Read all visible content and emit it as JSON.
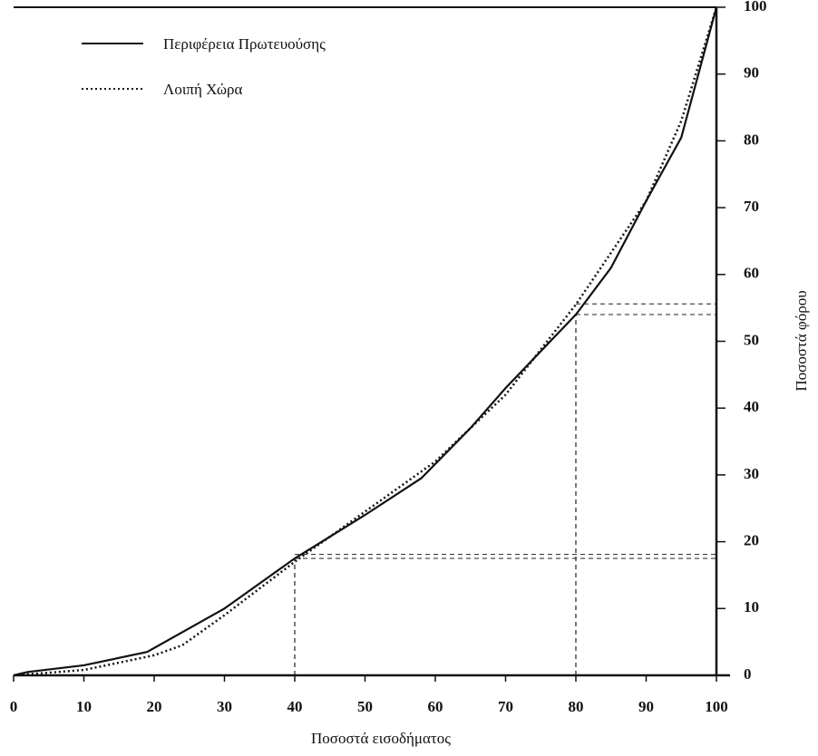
{
  "chart_data": {
    "type": "line",
    "x_label": "Ποσοστά εισοδήματος",
    "y_label": "Ποσοστά φόρου",
    "xlim": [
      0,
      100
    ],
    "xticks": [
      0,
      10,
      20,
      30,
      40,
      50,
      60,
      70,
      80,
      90,
      100
    ],
    "ylim": [
      0,
      100
    ],
    "yticks": [
      0,
      10,
      20,
      30,
      40,
      50,
      60,
      70,
      80,
      90,
      100
    ],
    "legend": "upper left",
    "series": [
      {
        "name": "Περιφέρεια Πρωτευούσης",
        "color": "#111111",
        "style": "solid",
        "x": [
          0,
          2,
          10,
          19,
          30,
          40,
          50,
          58,
          65,
          70,
          80,
          85,
          90,
          95,
          100
        ],
        "values": [
          0,
          0.5,
          1.5,
          3.5,
          10,
          17.5,
          24,
          29.5,
          37,
          43,
          54,
          61,
          71,
          80.5,
          100
        ]
      },
      {
        "name": "Λοιπή Χώρα",
        "color": "#111111",
        "style": "dotted",
        "x": [
          0,
          10,
          20,
          24,
          30,
          40,
          50,
          60,
          70,
          80,
          90,
          95,
          100
        ],
        "values": [
          0,
          0.8,
          3,
          4.5,
          9,
          17,
          24.5,
          32,
          42,
          55.5,
          71,
          83,
          100
        ]
      }
    ],
    "guides": [
      {
        "x": 40,
        "y": [
          17.5,
          18.1
        ]
      },
      {
        "x": 80,
        "y": [
          54,
          55.6
        ]
      }
    ]
  }
}
